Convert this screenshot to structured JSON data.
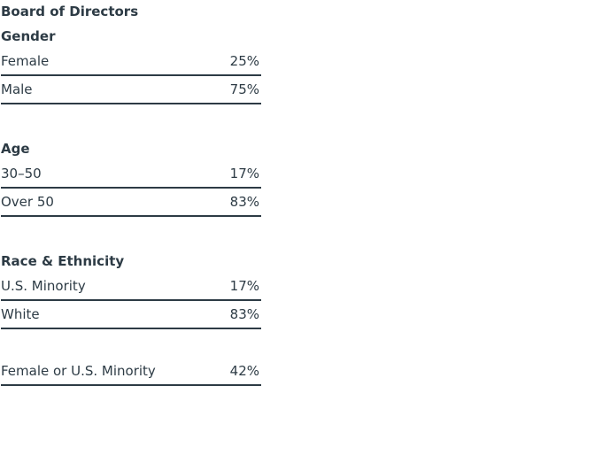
{
  "page": {
    "background": "#ffffff",
    "text_color": "#2d3b45",
    "rule_color": "#2d3b45"
  },
  "table": {
    "title": "Board of Directors",
    "sections": [
      {
        "heading": "Gender",
        "rows": [
          {
            "label": "Female",
            "value": "25%"
          },
          {
            "label": "Male",
            "value": "75%"
          }
        ]
      },
      {
        "heading": "Age",
        "rows": [
          {
            "label": "30–50",
            "value": "17%"
          },
          {
            "label": "Over 50",
            "value": "83%"
          }
        ]
      },
      {
        "heading": "Race & Ethnicity",
        "rows": [
          {
            "label": "U.S. Minority",
            "value": "17%"
          },
          {
            "label": "White",
            "value": "83%"
          }
        ]
      },
      {
        "heading": "",
        "rows": [
          {
            "label": "Female or U.S. Minority",
            "value": "42%"
          }
        ]
      }
    ]
  },
  "chart_data": {
    "type": "table",
    "title": "Board of Directors",
    "unit": "%",
    "sections": [
      {
        "heading": "Gender",
        "categories": [
          "Female",
          "Male"
        ],
        "values": [
          25,
          75
        ]
      },
      {
        "heading": "Age",
        "categories": [
          "30–50",
          "Over 50"
        ],
        "values": [
          17,
          83
        ]
      },
      {
        "heading": "Race & Ethnicity",
        "categories": [
          "U.S. Minority",
          "White"
        ],
        "values": [
          17,
          83
        ]
      },
      {
        "heading": "",
        "categories": [
          "Female or U.S. Minority"
        ],
        "values": [
          42
        ]
      }
    ]
  }
}
